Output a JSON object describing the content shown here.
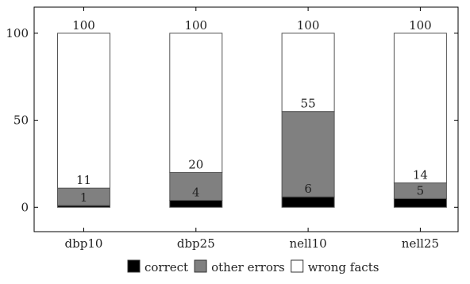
{
  "chart_data": {
    "type": "bar",
    "stacked": true,
    "categories": [
      "dbp10",
      "dbp25",
      "nell10",
      "nell25"
    ],
    "series": [
      {
        "name": "correct",
        "color": "#000000",
        "values": [
          1,
          4,
          6,
          5
        ]
      },
      {
        "name": "other errors",
        "color": "#808080",
        "values": [
          10,
          16,
          49,
          9
        ]
      },
      {
        "name": "wrong facts",
        "color": "#ffffff",
        "values": [
          89,
          80,
          45,
          86
        ]
      }
    ],
    "data_labels": [
      {
        "category": "dbp10",
        "labels": [
          {
            "at": 1,
            "text": "1"
          },
          {
            "at": 11,
            "text": "11"
          },
          {
            "at": 100,
            "text": "100"
          }
        ]
      },
      {
        "category": "dbp25",
        "labels": [
          {
            "at": 4,
            "text": "4"
          },
          {
            "at": 20,
            "text": "20"
          },
          {
            "at": 100,
            "text": "100"
          }
        ]
      },
      {
        "category": "nell10",
        "labels": [
          {
            "at": 6,
            "text": "6"
          },
          {
            "at": 55,
            "text": "55"
          },
          {
            "at": 100,
            "text": "100"
          }
        ]
      },
      {
        "category": "nell25",
        "labels": [
          {
            "at": 5,
            "text": "5"
          },
          {
            "at": 14,
            "text": "14"
          },
          {
            "at": 100,
            "text": "100"
          }
        ]
      }
    ],
    "yticks": [
      0,
      50,
      100
    ],
    "ylim": [
      -14,
      115
    ],
    "grid": false,
    "legend_position": "bottom"
  }
}
